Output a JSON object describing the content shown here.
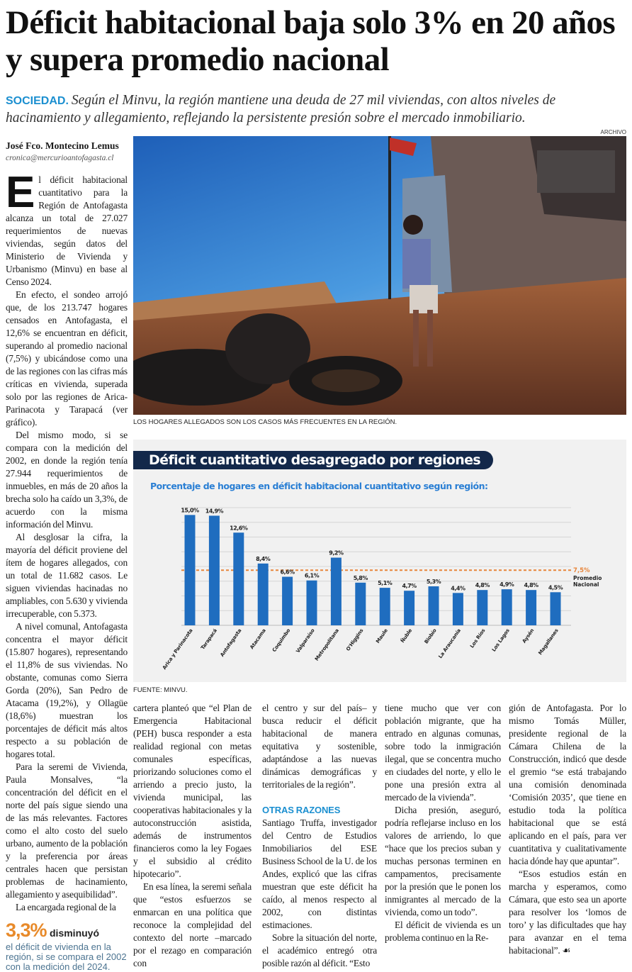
{
  "headline": "Déficit habitacional baja solo 3% en 20 años y supera promedio nacional",
  "deck": {
    "kicker": "SOCIEDAD.",
    "text": "Según el Minvu, la región mantiene una deuda de 27 mil viviendas, con altos niveles de hacinamiento y allegamiento, reflejando la persistente presión sobre el mercado inmobiliario."
  },
  "photo": {
    "credit": "ARCHIVO",
    "caption": "LOS HOGARES ALLEGADOS SON LOS CASOS MÁS FRECUENTES EN LA REGIÓN."
  },
  "byline": {
    "author": "José Fco. Montecino Lemus",
    "email": "cronica@mercurioantofagasta.cl"
  },
  "left_column": {
    "dropcap": "E",
    "first_paragraph": "l déficit habitacional cuantitativo para la Región de Antofagasta alcanza un total de 27.027 requerimientos de nuevas viviendas, según datos del Ministerio de Vivienda y Urbanismo (Minvu) en base al Censo 2024.",
    "paragraphs": [
      "En efecto, el sondeo arrojó que, de los 213.747 hogares censados en Antofagasta, el 12,6% se encuentran en déficit, superando al promedio nacional (7,5%) y ubicándose como una de las regiones con las cifras más críticas en vivienda, superada solo por las regiones de Arica-Parinacota y Tarapacá (ver gráfico).",
      "Del mismo modo, si se compara con la medición del 2002, en donde la región tenía 27.944 requerimientos de inmuebles, en más de 20 años la brecha solo ha caído un 3,3%, de acuerdo con la misma información del Minvu.",
      "Al desglosar la cifra, la mayoría del déficit proviene del ítem de hogares allegados, con un total de 11.682 casos. Le siguen viviendas hacinadas no ampliables, con 5.630 y vivienda irrecuperable, con 5.373.",
      "A nivel comunal, Antofagasta concentra el mayor déficit (15.807 hogares), representando el 11,8% de sus viviendas. No obstante, comunas como Sierra Gorda (20%), San Pedro de Atacama (19,2%), y Ollagüe (18,6%) muestran los porcentajes de déficit más altos respecto a su población de hogares total.",
      "Para la seremi de Vivienda, Paula Monsalves, “la concentración del déficit en el norte del país sigue siendo una de las más relevantes. Factores como el alto costo del suelo urbano, aumento de la población y la preferencia por áreas centrales hacen que persistan problemas de hacinamiento, allegamiento y asequibilidad”.",
      "La encargada regional de la"
    ]
  },
  "stat_box": {
    "figure": "3,3%",
    "verb": "disminuyó",
    "text": "el déficit de vivienda en la región, si se compara el 2002 con la medición del 2024."
  },
  "bottom_columns": {
    "col1": [
      "cartera planteó que “el Plan de Emergencia Habitacional (PEH) busca responder a esta realidad regional con metas comunales específicas, priorizando soluciones como el arriendo a precio justo, la vivienda municipal, las cooperativas habitacionales y la autoconstrucción asistida, además de instrumentos financieros como la ley Fogaes y el subsidio al crédito hipotecario”.",
      "En esa línea, la seremi señala que “estos esfuerzos se enmarcan en una política que reconoce la complejidad del contexto del norte –marcado por el rezago en comparación con"
    ],
    "col2": [
      "el centro y sur del país– y busca reducir el déficit habitacional de manera equitativa y sostenible, adaptándose a las nuevas dinámicas demográficas y territoriales de la región”."
    ],
    "subhead": "OTRAS RAZONES",
    "col2_after": [
      "Santiago Truffa, investigador del Centro de Estudios Inmobiliarios del ESE Business School de la U. de los Andes, explicó que las cifras muestran que este déficit ha caído, al menos respecto al 2002, con distintas estimaciones.",
      "Sobre la situación del norte, el académico entregó otra posible razón al déficit. “Esto"
    ],
    "col3": [
      "tiene mucho que ver con población migrante, que ha entrado en algunas comunas, sobre todo la inmigración ilegal, que se concentra mucho en ciudades del norte, y ello le pone una presión extra al mercado de la vivienda”.",
      "Dicha presión, aseguró, podría reflejarse incluso en los valores de arriendo, lo que “hace que los precios suban y muchas personas terminen en campamentos, precisamente por la presión que le ponen los inmigrantes al mercado de la vivienda, como un todo”.",
      "El déficit de vivienda es un problema continuo en la Re-"
    ],
    "col4": [
      "gión de Antofagasta. Por lo mismo Tomás Müller, presidente regional de la Cámara Chilena de la Construcción, indicó que desde el gremio “se está trabajando una comisión denominada ‘Comisión 2035’, que tiene en estudio toda la política habitacional que se está aplicando en el país, para ver cuantitativa y cualitativamente hacia dónde hay que apuntar”.",
      "“Esos estudios están en marcha y esperamos, como Cámara, que esto sea un aporte para resolver los ‘lomos de toro’ y las dificultades que hay para avanzar en el tema habitacional”. ☙"
    ]
  },
  "chart_data": {
    "type": "bar",
    "title": "Déficit cuantitativo desagregado por regiones",
    "subtitle": "Porcentaje de hogares en déficit habitacional cuantitativo según región:",
    "categories": [
      "Arica y Parinacota",
      "Tarapacá",
      "Antofagasta",
      "Atacama",
      "Coquimbo",
      "Valparaíso",
      "Metropolitana",
      "O'Higgins",
      "Maule",
      "Ñuble",
      "Biobío",
      "La Araucanía",
      "Los Ríos",
      "Los Lagos",
      "Aysén",
      "Magallanes"
    ],
    "values": [
      15.0,
      14.9,
      12.6,
      8.4,
      6.6,
      6.1,
      9.2,
      5.8,
      5.1,
      4.7,
      5.3,
      4.4,
      4.8,
      4.9,
      4.8,
      4.5
    ],
    "value_labels": [
      "15,0%",
      "14,9%",
      "12,6%",
      "8,4%",
      "6,6%",
      "6,1%",
      "9,2%",
      "5,8%",
      "5,1%",
      "4,7%",
      "5,3%",
      "4,4%",
      "4,8%",
      "4,9%",
      "4,8%",
      "4,5%"
    ],
    "reference_line": {
      "value": 7.5,
      "label": "7,5%",
      "name": "Promedio Nacional",
      "color": "#e8853a"
    },
    "ylim": [
      0,
      16
    ],
    "grid": true,
    "bar_color": "#1f6dbf",
    "source": "FUENTE: MINVU."
  },
  "colors": {
    "accent_blue": "#1b8fd0",
    "chart_header": "#13284a",
    "stat_orange": "#e88a2a"
  }
}
